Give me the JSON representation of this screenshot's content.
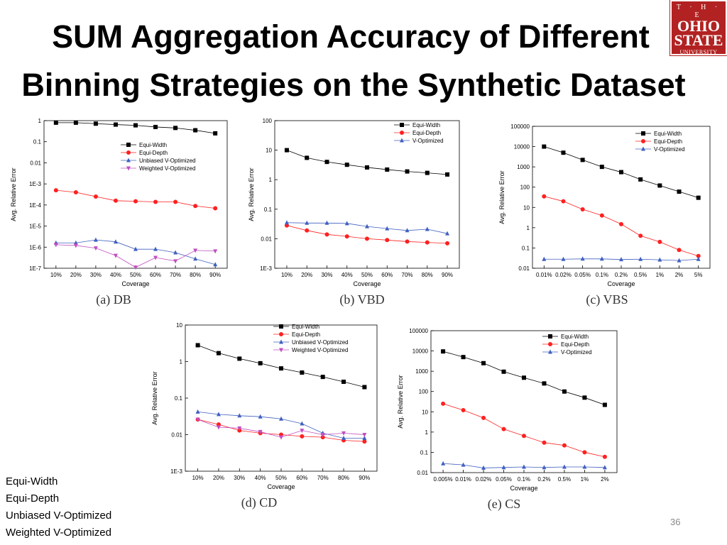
{
  "slide": {
    "title_line1": "SUM Aggregation Accuracy of Different",
    "title_line2": "Binning Strategies on the Synthetic Dataset",
    "page_number": "36",
    "logo": {
      "line1": "T · H · E",
      "line2": "OHIO",
      "line3": "STATE",
      "line4": "UNIVERSITY"
    },
    "legend_text": [
      "Equi-Width",
      "Equi-Depth",
      "Unbiased V-Optimized",
      "Weighted V-Optimized"
    ]
  },
  "series_styles": {
    "Equi-Width": {
      "color": "#000000",
      "marker": "square"
    },
    "Equi-Depth": {
      "color": "#ff2020",
      "marker": "circle"
    },
    "Unbiased V-Optimized": {
      "color": "#4060c0",
      "marker": "triangle"
    },
    "V-Optimized": {
      "color": "#4060c0",
      "marker": "triangle"
    },
    "Weighted V-Optimized": {
      "color": "#c050c0",
      "marker": "invtriangle"
    }
  },
  "chart_data": [
    {
      "type": "line",
      "caption": "(a) DB",
      "xlabel": "Coverage",
      "ylabel": "Avg. Relative Error",
      "yscale": "log",
      "ylim": [
        1e-07,
        1
      ],
      "yticks": [
        "1E-7",
        "1E-6",
        "1E-5",
        "1E-4",
        "1E-3",
        "0.01",
        "0.1",
        "1"
      ],
      "categories": [
        "10%",
        "20%",
        "30%",
        "40%",
        "50%",
        "60%",
        "70%",
        "80%",
        "90%"
      ],
      "legend_position": "top-right",
      "series": [
        {
          "name": "Equi-Width",
          "values": [
            0.8,
            0.8,
            0.72,
            0.65,
            0.6,
            0.5,
            0.45,
            0.35,
            0.25
          ]
        },
        {
          "name": "Equi-Depth",
          "values": [
            0.0005,
            0.0004,
            0.00025,
            0.00016,
            0.00015,
            0.00014,
            0.00014,
            9e-05,
            7e-05
          ]
        },
        {
          "name": "Unbiased V-Optimized",
          "values": [
            1.6e-06,
            1.6e-06,
            2.2e-06,
            1.8e-06,
            8e-07,
            8e-07,
            5.5e-07,
            2.8e-07,
            1.5e-07
          ]
        },
        {
          "name": "Weighted V-Optimized",
          "values": [
            1.3e-06,
            1.2e-06,
            9e-07,
            4e-07,
            1.1e-07,
            3.2e-07,
            2.2e-07,
            7e-07,
            6.5e-07
          ]
        }
      ]
    },
    {
      "type": "line",
      "caption": "(b) VBD",
      "xlabel": "Coverage",
      "ylabel": "Avg. Relative Error",
      "yscale": "log",
      "ylim": [
        0.001,
        100
      ],
      "yticks": [
        "1E-3",
        "0.01",
        "0.1",
        "1",
        "10",
        "100"
      ],
      "categories": [
        "10%",
        "20%",
        "30%",
        "40%",
        "50%",
        "60%",
        "70%",
        "80%",
        "90%"
      ],
      "legend_position": "top-right",
      "series": [
        {
          "name": "Equi-Width",
          "values": [
            10,
            5.5,
            4,
            3.2,
            2.6,
            2.2,
            1.9,
            1.7,
            1.5
          ]
        },
        {
          "name": "Equi-Depth",
          "values": [
            0.028,
            0.019,
            0.014,
            0.012,
            0.01,
            0.009,
            0.008,
            0.0075,
            0.007
          ]
        },
        {
          "name": "V-Optimized",
          "values": [
            0.035,
            0.034,
            0.034,
            0.033,
            0.026,
            0.022,
            0.019,
            0.021,
            0.015
          ]
        }
      ]
    },
    {
      "type": "line",
      "caption": "(c) VBS",
      "xlabel": "Coverage",
      "ylabel": "Avg. Relative Error",
      "yscale": "log",
      "ylim": [
        0.01,
        100000
      ],
      "yticks": [
        "0.01",
        "0.1",
        "1",
        "10",
        "100",
        "1000",
        "10000",
        "100000"
      ],
      "categories": [
        "0.01%",
        "0.02%",
        "0.05%",
        "0.1%",
        "0.2%",
        "0.5%",
        "1%",
        "2%",
        "5%"
      ],
      "legend_position": "top-right",
      "series": [
        {
          "name": "Equi-Width",
          "values": [
            10000,
            5000,
            2200,
            1000,
            550,
            240,
            120,
            60,
            30
          ]
        },
        {
          "name": "Equi-Depth",
          "values": [
            35,
            20,
            8,
            4,
            1.5,
            0.4,
            0.2,
            0.08,
            0.04
          ]
        },
        {
          "name": "V-Optimized",
          "values": [
            0.028,
            0.028,
            0.029,
            0.029,
            0.027,
            0.028,
            0.026,
            0.024,
            0.028
          ]
        }
      ]
    },
    {
      "type": "line",
      "caption": "(d) CD",
      "xlabel": "Coverage",
      "ylabel": "Avg. Relative Error",
      "yscale": "log",
      "ylim": [
        0.001,
        10
      ],
      "yticks": [
        "1E-3",
        "0.01",
        "0.1",
        "1",
        "10"
      ],
      "categories": [
        "10%",
        "20%",
        "30%",
        "40%",
        "50%",
        "60%",
        "70%",
        "80%",
        "90%"
      ],
      "legend_position": "top-right",
      "series": [
        {
          "name": "Equi-Width",
          "values": [
            2.8,
            1.7,
            1.2,
            0.9,
            0.65,
            0.5,
            0.38,
            0.28,
            0.2
          ]
        },
        {
          "name": "Equi-Depth",
          "values": [
            0.026,
            0.019,
            0.013,
            0.011,
            0.01,
            0.009,
            0.0085,
            0.007,
            0.0065
          ]
        },
        {
          "name": "Unbiased V-Optimized",
          "values": [
            0.042,
            0.036,
            0.033,
            0.031,
            0.027,
            0.02,
            0.011,
            0.008,
            0.008
          ]
        },
        {
          "name": "Weighted V-Optimized",
          "values": [
            0.026,
            0.016,
            0.015,
            0.012,
            0.0085,
            0.013,
            0.01,
            0.011,
            0.01
          ]
        }
      ]
    },
    {
      "type": "line",
      "caption": "(e) CS",
      "xlabel": "Coverage",
      "ylabel": "Avg. Relative Error",
      "yscale": "log",
      "ylim": [
        0.01,
        100000
      ],
      "yticks": [
        "0.01",
        "0.1",
        "1",
        "10",
        "100",
        "1000",
        "10000",
        "100000"
      ],
      "categories": [
        "0.005%",
        "0.01%",
        "0.02%",
        "0.05%",
        "0.1%",
        "0.2%",
        "0.5%",
        "1%",
        "2%"
      ],
      "legend_position": "top-right",
      "series": [
        {
          "name": "Equi-Width",
          "values": [
            9500,
            5000,
            2500,
            950,
            480,
            250,
            100,
            50,
            22
          ]
        },
        {
          "name": "Equi-Depth",
          "values": [
            25,
            12,
            5,
            1.4,
            0.65,
            0.3,
            0.22,
            0.1,
            0.06
          ]
        },
        {
          "name": "V-Optimized",
          "values": [
            0.028,
            0.024,
            0.017,
            0.018,
            0.019,
            0.018,
            0.019,
            0.019,
            0.018
          ]
        }
      ]
    }
  ]
}
